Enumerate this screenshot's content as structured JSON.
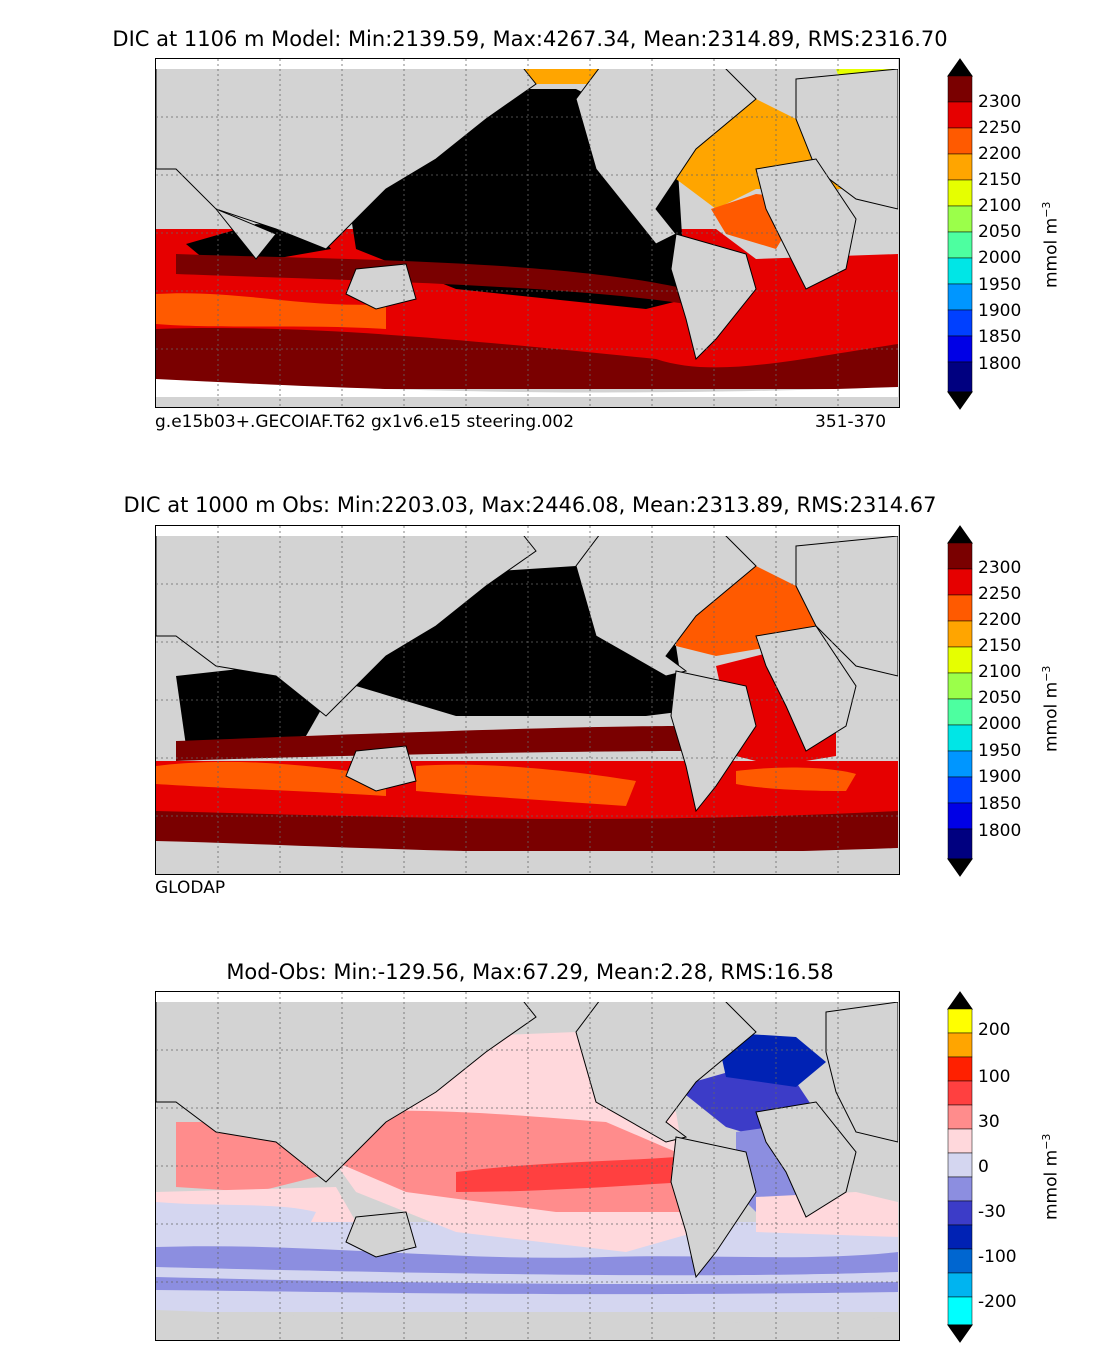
{
  "panels": [
    {
      "title": "DIC at 1106 m Model: Min:2139.59, Max:4267.34, Mean:2314.89, RMS:2316.70",
      "footer_left": "g.e15b03+.GECOIAF.T62 gx1v6.e15 steering.002",
      "footer_right": "351-370",
      "units": "mmol m",
      "units_exp": "−3",
      "colorbar": {
        "labels": [
          "2300",
          "2250",
          "2200",
          "2150",
          "2100",
          "2050",
          "2000",
          "1950",
          "1900",
          "1850",
          "1800"
        ],
        "colors": [
          "#000000",
          "#7a0000",
          "#e60000",
          "#ff5a00",
          "#ffa500",
          "#e6ff00",
          "#9bff4a",
          "#4dffa0",
          "#00e6e6",
          "#0096ff",
          "#0040ff",
          "#0000e6",
          "#000080"
        ]
      }
    },
    {
      "title": "DIC at 1000 m Obs: Min:2203.03, Max:2446.08, Mean:2313.89, RMS:2314.67",
      "footer_left": "GLODAP",
      "footer_right": "",
      "units": "mmol m",
      "units_exp": "−3",
      "colorbar": {
        "labels": [
          "2300",
          "2250",
          "2200",
          "2150",
          "2100",
          "2050",
          "2000",
          "1950",
          "1900",
          "1850",
          "1800"
        ],
        "colors": [
          "#000000",
          "#7a0000",
          "#e60000",
          "#ff5a00",
          "#ffa500",
          "#e6ff00",
          "#9bff4a",
          "#4dffa0",
          "#00e6e6",
          "#0096ff",
          "#0040ff",
          "#0000e6",
          "#000080"
        ]
      }
    },
    {
      "title": "Mod-Obs: Min:-129.56, Max:67.29, Mean:2.28, RMS:16.58",
      "footer_left": "",
      "footer_right": "",
      "units": "mmol m",
      "units_exp": "−3",
      "colorbar": {
        "labels": [
          "200",
          "100",
          "30",
          "0",
          "-30",
          "-100",
          "-200"
        ],
        "colors": [
          "#000000",
          "#ffff00",
          "#ffa500",
          "#ff2000",
          "#ff4040",
          "#ff8c8c",
          "#ffd8dc",
          "#d4d6f0",
          "#8c8ee0",
          "#3c3cc8",
          "#0022b4",
          "#0066d0",
          "#00b4f0",
          "#00ffff",
          "#000000"
        ]
      }
    }
  ]
}
